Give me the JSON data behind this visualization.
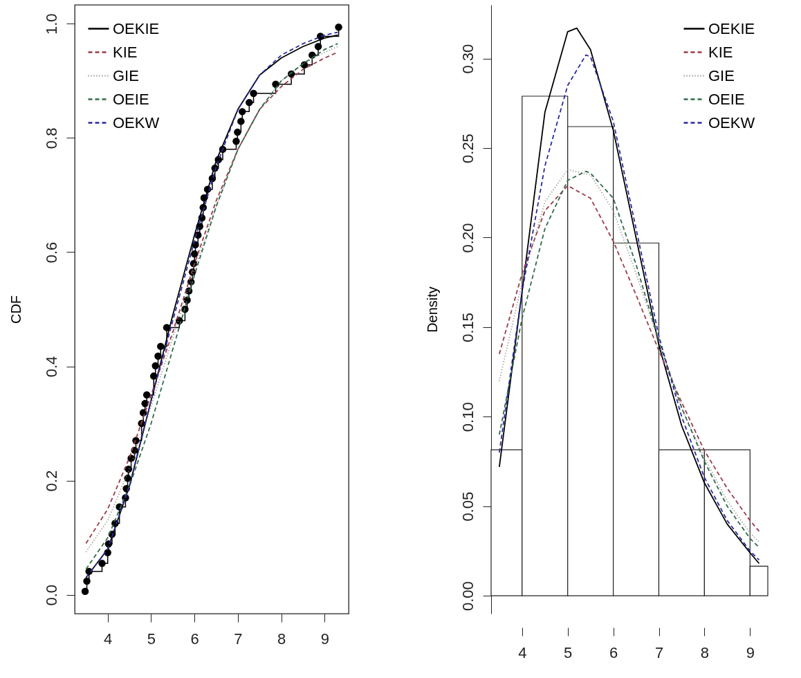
{
  "chart_data": [
    {
      "type": "line",
      "ylabel": "CDF",
      "xlim": [
        3.24,
        9.55
      ],
      "ylim": [
        -0.033,
        1.033
      ],
      "xticks": [
        4,
        5,
        6,
        7,
        8,
        9
      ],
      "yticks": [
        {
          "value": 0,
          "label": "0.0"
        },
        {
          "value": 0.2,
          "label": "0.2"
        },
        {
          "value": 0.4,
          "label": "0.4"
        },
        {
          "value": 0.6,
          "label": "0.6"
        },
        {
          "value": 0.8,
          "label": "0.8"
        },
        {
          "value": 1,
          "label": "1.0"
        }
      ],
      "legend": "top left",
      "series": [
        {
          "type": "step",
          "marker": "circle",
          "color": "#000000",
          "x": [
            3.48,
            3.52,
            3.57,
            3.87,
            4.0,
            4.02,
            4.1,
            4.17,
            4.27,
            4.41,
            4.43,
            4.46,
            4.48,
            4.54,
            4.62,
            4.65,
            4.78,
            4.82,
            4.86,
            4.9,
            5.06,
            5.1,
            5.16,
            5.22,
            5.36,
            5.65,
            5.78,
            5.83,
            5.87,
            5.92,
            5.95,
            5.98,
            6.0,
            6.02,
            6.08,
            6.12,
            6.17,
            6.2,
            6.22,
            6.3,
            6.41,
            6.47,
            6.55,
            6.65,
            6.96,
            6.99,
            7.07,
            7.1,
            7.26,
            7.36,
            7.87,
            8.23,
            8.53,
            8.71,
            8.85,
            8.9,
            9.32
          ],
          "values": [
            0.006,
            0.024,
            0.041,
            0.055,
            0.074,
            0.089,
            0.106,
            0.125,
            0.154,
            0.17,
            0.186,
            0.204,
            0.22,
            0.239,
            0.253,
            0.27,
            0.3,
            0.319,
            0.335,
            0.35,
            0.383,
            0.401,
            0.418,
            0.435,
            0.468,
            0.48,
            0.5,
            0.516,
            0.532,
            0.548,
            0.565,
            0.58,
            0.597,
            0.613,
            0.63,
            0.645,
            0.66,
            0.678,
            0.695,
            0.71,
            0.729,
            0.747,
            0.762,
            0.78,
            0.794,
            0.81,
            0.829,
            0.846,
            0.862,
            0.878,
            0.894,
            0.912,
            0.928,
            0.945,
            0.96,
            0.978,
            0.994
          ]
        },
        {
          "name": "OEKIE",
          "color": "#000000",
          "line_style": "solid",
          "x": [
            3.5,
            4,
            4.5,
            5,
            5.5,
            6,
            6.5,
            7,
            7.5,
            8,
            8.5,
            9,
            9.3
          ],
          "values": [
            0.03,
            0.08,
            0.19,
            0.34,
            0.49,
            0.63,
            0.76,
            0.85,
            0.91,
            0.94,
            0.96,
            0.975,
            0.98
          ]
        },
        {
          "name": "KIE",
          "color": "#9a3b4a",
          "line_style": "dashed",
          "x": [
            3.5,
            4,
            4.5,
            5,
            5.5,
            6,
            6.5,
            7,
            7.5,
            8,
            8.5,
            9,
            9.3
          ],
          "values": [
            0.09,
            0.15,
            0.24,
            0.35,
            0.46,
            0.58,
            0.69,
            0.78,
            0.85,
            0.89,
            0.92,
            0.94,
            0.95
          ]
        },
        {
          "name": "GIE",
          "color": "#808080",
          "line_style": "dotted",
          "x": [
            3.5,
            4,
            4.5,
            5,
            5.5,
            6,
            6.5,
            7,
            7.5,
            8,
            8.5,
            9,
            9.3
          ],
          "values": [
            0.075,
            0.13,
            0.22,
            0.33,
            0.45,
            0.57,
            0.68,
            0.78,
            0.85,
            0.9,
            0.93,
            0.95,
            0.96
          ]
        },
        {
          "name": "OEIE",
          "color": "#2e6b4a",
          "line_style": "dashed",
          "x": [
            3.5,
            4,
            4.5,
            5,
            5.5,
            6,
            6.5,
            7,
            7.5,
            8,
            8.5,
            9,
            9.3
          ],
          "values": [
            0.045,
            0.1,
            0.19,
            0.3,
            0.43,
            0.56,
            0.68,
            0.78,
            0.85,
            0.9,
            0.93,
            0.955,
            0.965
          ]
        },
        {
          "name": "OEKW",
          "color": "#2a2aa0",
          "line_style": "dashed",
          "x": [
            3.5,
            4,
            4.5,
            5,
            5.5,
            6,
            6.5,
            7,
            7.5,
            8,
            8.5,
            9,
            9.3
          ],
          "values": [
            0.03,
            0.08,
            0.19,
            0.34,
            0.48,
            0.62,
            0.75,
            0.85,
            0.91,
            0.945,
            0.965,
            0.98,
            0.985
          ]
        }
      ]
    },
    {
      "type": "histogram",
      "ylabel": "Density",
      "xlim": [
        3.32,
        9.39
      ],
      "ylim": [
        -0.01,
        0.33
      ],
      "xticks": [
        4,
        5,
        6,
        7,
        8,
        9
      ],
      "yticks": [
        {
          "value": 0,
          "label": "0.00"
        },
        {
          "value": 0.05,
          "label": "0.05"
        },
        {
          "value": 0.1,
          "label": "0.10"
        },
        {
          "value": 0.15,
          "label": "0.15"
        },
        {
          "value": 0.2,
          "label": "0.20"
        },
        {
          "value": 0.25,
          "label": "0.25"
        },
        {
          "value": 0.3,
          "label": "0.30"
        }
      ],
      "legend": "top right",
      "bins": [
        3.32,
        4,
        5,
        6,
        7,
        8,
        9,
        9.39
      ],
      "values": [
        0.0815,
        0.279,
        0.262,
        0.197,
        0.0815,
        0.0815,
        0.0165
      ],
      "series": [
        {
          "type": "line",
          "name": "OEKIE",
          "color": "#000000",
          "line_style": "solid",
          "x": [
            3.5,
            4,
            4.5,
            5,
            5.2,
            5.5,
            6,
            6.5,
            7,
            7.5,
            8,
            8.5,
            9,
            9.2
          ],
          "values": [
            0.072,
            0.17,
            0.27,
            0.315,
            0.317,
            0.305,
            0.26,
            0.2,
            0.14,
            0.095,
            0.063,
            0.04,
            0.024,
            0.018
          ]
        },
        {
          "type": "line",
          "name": "KIE",
          "color": "#9a3b4a",
          "line_style": "dashed",
          "x": [
            3.5,
            4,
            4.5,
            5,
            5.5,
            6,
            6.5,
            7,
            7.5,
            8,
            8.5,
            9,
            9.2
          ],
          "values": [
            0.135,
            0.18,
            0.215,
            0.229,
            0.222,
            0.198,
            0.168,
            0.137,
            0.108,
            0.081,
            0.06,
            0.042,
            0.036
          ]
        },
        {
          "type": "line",
          "name": "GIE",
          "color": "#808080",
          "line_style": "dotted",
          "x": [
            3.5,
            4,
            4.5,
            5,
            5.5,
            6,
            6.5,
            7,
            7.5,
            8,
            8.5,
            9,
            9.2
          ],
          "values": [
            0.12,
            0.175,
            0.22,
            0.238,
            0.235,
            0.215,
            0.18,
            0.142,
            0.105,
            0.077,
            0.053,
            0.035,
            0.03
          ]
        },
        {
          "type": "line",
          "name": "OEIE",
          "color": "#2e6b4a",
          "line_style": "dashed",
          "x": [
            3.5,
            4,
            4.5,
            5,
            5.4,
            5.5,
            6,
            6.5,
            7,
            7.5,
            8,
            8.5,
            9,
            9.2
          ],
          "values": [
            0.09,
            0.155,
            0.205,
            0.232,
            0.237,
            0.236,
            0.222,
            0.185,
            0.142,
            0.105,
            0.075,
            0.05,
            0.032,
            0.027
          ]
        },
        {
          "type": "line",
          "name": "OEKW",
          "color": "#2a2aa0",
          "line_style": "dashed",
          "x": [
            3.5,
            4,
            4.5,
            5,
            5.4,
            5.5,
            6,
            6.5,
            7,
            7.5,
            8,
            8.5,
            9,
            9.2
          ],
          "values": [
            0.08,
            0.17,
            0.24,
            0.285,
            0.302,
            0.301,
            0.265,
            0.205,
            0.145,
            0.1,
            0.066,
            0.042,
            0.025,
            0.02
          ]
        }
      ]
    }
  ]
}
